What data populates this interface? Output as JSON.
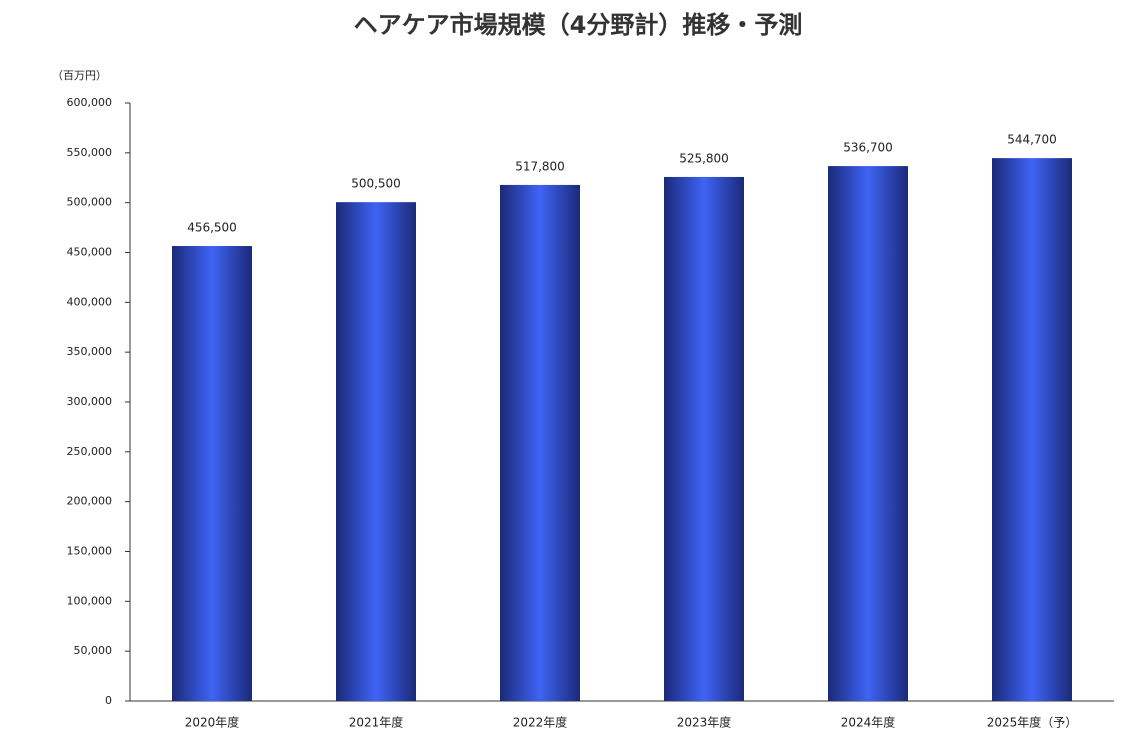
{
  "chart_data": {
    "type": "bar",
    "title": "ヘアケア市場規模（4分野計）推移・予測",
    "y_unit": "（百万円）",
    "categories": [
      "2020年度",
      "2021年度",
      "2022年度",
      "2023年度",
      "2024年度",
      "2025年度（予）"
    ],
    "values": [
      456500,
      500500,
      517800,
      525800,
      536700,
      544700
    ],
    "value_labels": [
      "456,500",
      "500,500",
      "517,800",
      "525,800",
      "536,700",
      "544,700"
    ],
    "color": "#3f63f5",
    "ylim": [
      0,
      600000
    ],
    "yticks": [
      0,
      {
        "value": 50000,
        "label": "50,000"
      },
      {
        "value": 100000,
        "label": "100,000"
      },
      {
        "value": 150000,
        "label": "150,000"
      },
      {
        "value": 200000,
        "label": "200,000"
      },
      {
        "value": 250000,
        "label": "250,000"
      },
      {
        "value": 300000,
        "label": "300,000"
      },
      {
        "value": 350000,
        "label": "350,000"
      },
      {
        "value": 400000,
        "label": "400,000"
      },
      {
        "value": 450000,
        "label": "450,000"
      },
      {
        "value": 500000,
        "label": "500,000"
      },
      {
        "value": 550000,
        "label": "550,000"
      },
      {
        "value": 600000,
        "label": "600,000"
      }
    ],
    "grid": false
  }
}
